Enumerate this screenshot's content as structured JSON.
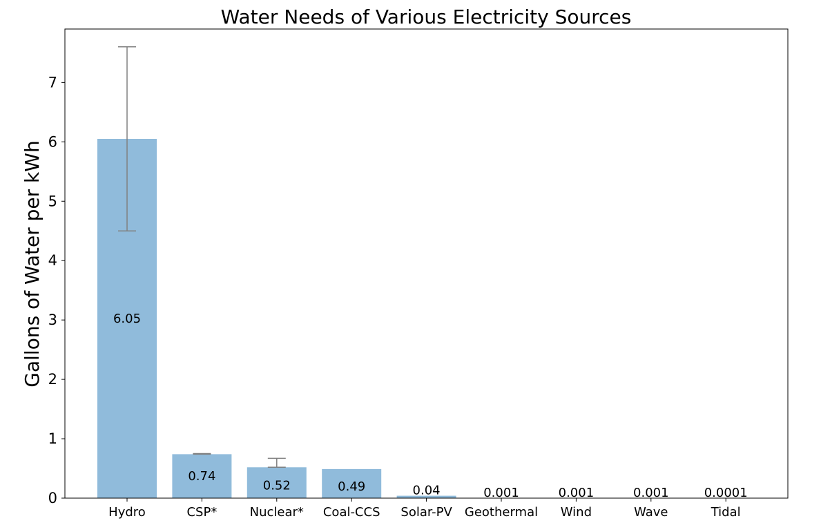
{
  "chart_data": {
    "type": "bar",
    "title": "Water Needs of Various Electricity Sources",
    "xlabel": "",
    "ylabel": "Gallons of Water per kWh",
    "categories": [
      "Hydro",
      "CSP*",
      "Nuclear*",
      "Coal-CCS",
      "Solar-PV",
      "Geothermal",
      "Wind",
      "Wave",
      "Tidal"
    ],
    "values": [
      6.05,
      0.74,
      0.52,
      0.49,
      0.04,
      0.001,
      0.001,
      0.001,
      0.0001
    ],
    "value_labels": [
      "6.05",
      "0.74",
      "0.52",
      "0.49",
      "0.04",
      "0.001",
      "0.001",
      "0.001",
      "0.0001"
    ],
    "error_bars": [
      {
        "category": "Hydro",
        "low": 4.5,
        "high": 7.6
      },
      {
        "category": "CSP*",
        "low": 0.74,
        "high": 0.75
      },
      {
        "category": "Nuclear*",
        "low": 0.52,
        "high": 0.67
      }
    ],
    "ylim": [
      0,
      7.9
    ],
    "yticks": [
      0,
      1,
      2,
      3,
      4,
      5,
      6,
      7
    ],
    "grid": false,
    "colors": {
      "bar": "#90bbdb",
      "error_bar": "#808080",
      "axis": "#000000"
    }
  }
}
